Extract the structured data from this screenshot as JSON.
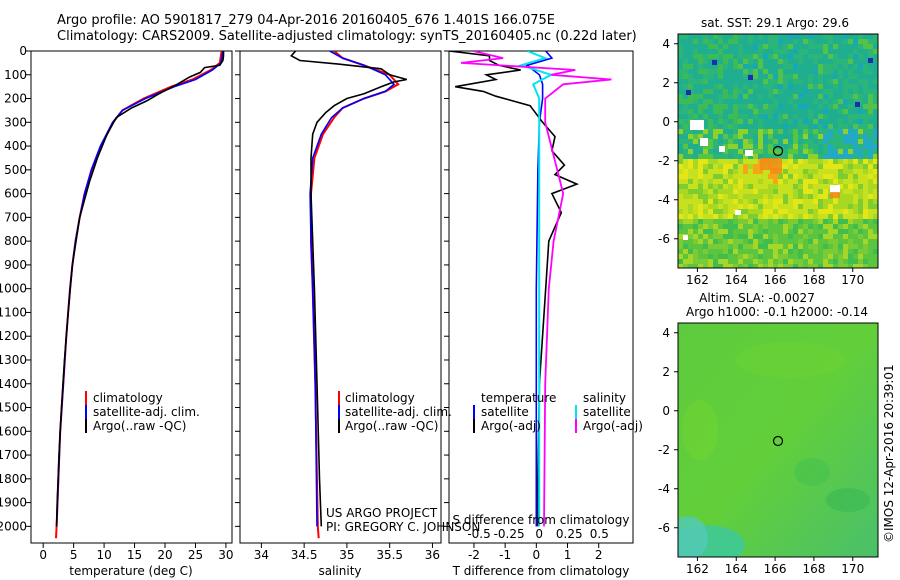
{
  "header": {
    "line1": "Argo profile: AO 5901817_279 04-Apr-2016 20160405_676 1.401S 166.075E",
    "line2": "Climatology: CARS2009. Satellite-adjusted climatology: synTS_20160405.nc (0.22d later)"
  },
  "sst_title": "sat. SST: 29.1 Argo: 29.6",
  "sla_title1": "Altim. SLA: -0.0027",
  "sla_title2": "Argo h1000: -0.1 h2000: -0.14",
  "credit_vertical": "©IMOS 12-Apr-2016 20:39:01",
  "project_line1": "US ARGO PROJECT",
  "project_line2": "PI: GREGORY C. JOHNSON",
  "colors": {
    "climatology": "#ff0000",
    "satellite": "#0000ff",
    "argo": "#000000",
    "diff_satellite_sal": "#00e5ee",
    "diff_argo_sal": "#ff00ff"
  },
  "chart_data": [
    {
      "type": "line",
      "id": "temperature",
      "xlabel": "temperature (deg C)",
      "ylabel": "",
      "xlim": [
        -2,
        31
      ],
      "ylim": [
        2070,
        0
      ],
      "xticks": [
        "0",
        "5",
        "10",
        "15",
        "20",
        "25",
        "30"
      ],
      "yticks": [
        "0",
        "100",
        "200",
        "300",
        "400",
        "500",
        "600",
        "700",
        "800",
        "900",
        "1000",
        "1100",
        "1200",
        "1300",
        "1400",
        "1500",
        "1600",
        "1700",
        "1800",
        "1900",
        "2000"
      ],
      "legend": [
        "climatology",
        "satellite-adj. clim.",
        "Argo(..raw -QC)"
      ],
      "series": [
        {
          "name": "climatology",
          "depth": [
            0,
            50,
            80,
            120,
            150,
            200,
            250,
            300,
            400,
            500,
            600,
            700,
            800,
            900,
            1000,
            1200,
            1400,
            1600,
            1800,
            2000,
            2050
          ],
          "values": [
            29.3,
            29.0,
            27.5,
            24.5,
            21.0,
            16.5,
            13.0,
            11.5,
            9.5,
            8.0,
            6.8,
            6.0,
            5.3,
            4.8,
            4.4,
            3.8,
            3.3,
            2.8,
            2.5,
            2.2,
            2.1
          ]
        },
        {
          "name": "satellite-adj. clim.",
          "depth": [
            0,
            50,
            80,
            120,
            150,
            200,
            250,
            300,
            400,
            500,
            600,
            700,
            800,
            900,
            1000,
            1200,
            1400,
            1600,
            1800,
            2000
          ],
          "values": [
            29.5,
            29.2,
            27.8,
            25.0,
            21.5,
            16.8,
            13.0,
            11.4,
            9.4,
            7.9,
            6.8,
            6.0,
            5.3,
            4.8,
            4.4,
            3.8,
            3.3,
            2.8,
            2.5,
            2.2
          ]
        },
        {
          "name": "Argo(..raw -QC)",
          "depth": [
            0,
            20,
            40,
            60,
            70,
            90,
            110,
            140,
            180,
            210,
            240,
            280,
            350,
            450,
            550,
            700,
            900,
            1100,
            1300,
            1500,
            1700,
            1900,
            2000
          ],
          "values": [
            29.6,
            29.6,
            29.5,
            29.0,
            26.5,
            25.8,
            24.0,
            22.0,
            19.0,
            17.0,
            14.5,
            12.0,
            10.5,
            8.9,
            7.6,
            6.0,
            4.8,
            4.1,
            3.5,
            3.0,
            2.6,
            2.3,
            2.2
          ]
        }
      ]
    },
    {
      "type": "line",
      "id": "salinity",
      "xlabel": "salinity",
      "xlim": [
        33.75,
        36.1
      ],
      "ylim": [
        2070,
        0
      ],
      "xticks": [
        "34",
        "34.5",
        "35",
        "35.5",
        "36"
      ],
      "legend": [
        "climatology",
        "satellite-adj. clim.",
        "Argo(..raw -QC)"
      ],
      "series": [
        {
          "name": "climatology",
          "depth": [
            0,
            30,
            60,
            100,
            140,
            170,
            200,
            240,
            280,
            350,
            450,
            600,
            800,
            1000,
            1400,
            2000,
            2050
          ],
          "values": [
            34.85,
            34.95,
            35.2,
            35.5,
            35.6,
            35.45,
            35.2,
            34.95,
            34.85,
            34.72,
            34.62,
            34.58,
            34.58,
            34.6,
            34.63,
            34.66,
            34.67
          ]
        },
        {
          "name": "satellite-adj. clim.",
          "depth": [
            0,
            30,
            60,
            100,
            140,
            170,
            200,
            240,
            280,
            350,
            450,
            600,
            800,
            1000,
            1400,
            2000
          ],
          "values": [
            34.8,
            34.95,
            35.2,
            35.45,
            35.55,
            35.45,
            35.2,
            34.95,
            34.82,
            34.7,
            34.6,
            34.57,
            34.58,
            34.6,
            34.63,
            34.65
          ]
        },
        {
          "name": "Argo(..raw -QC)",
          "depth": [
            0,
            20,
            40,
            55,
            75,
            100,
            120,
            130,
            150,
            180,
            200,
            230,
            260,
            300,
            350,
            450,
            600,
            800,
            1000,
            1400,
            1800,
            2000
          ],
          "values": [
            34.4,
            34.35,
            34.45,
            34.9,
            35.4,
            35.5,
            35.7,
            35.55,
            35.4,
            35.2,
            35.0,
            34.85,
            34.75,
            34.65,
            34.6,
            34.58,
            34.58,
            34.6,
            34.62,
            34.65,
            34.68,
            34.7
          ]
        }
      ]
    },
    {
      "type": "line",
      "id": "differences",
      "xlabel": "T difference from climatology",
      "xlabel_top": "S difference from climatology",
      "xlim_T": [
        -2.8,
        3.1
      ],
      "xlim_S": [
        -0.75,
        0.78
      ],
      "ylim": [
        2070,
        0
      ],
      "xticks_T": [
        "-2",
        "-1",
        "0",
        "1",
        "2"
      ],
      "xticks_S": [
        "-0.5",
        "-0.25",
        "0",
        "0.25",
        "0.5"
      ],
      "legend_temperature_title": "temperature",
      "legend_salinity_title": "salinity",
      "legend": [
        "satellite",
        "Argo(-adj)",
        "satellite",
        "Argo(-adj)"
      ],
      "series": [
        {
          "name": "T satellite",
          "depth": [
            0,
            30,
            60,
            100,
            140,
            200,
            300,
            500,
            1000,
            2000
          ],
          "values": [
            0.3,
            0.5,
            -0.3,
            0.1,
            0.2,
            0.2,
            0.1,
            0.05,
            0.0,
            0.0
          ]
        },
        {
          "name": "T Argo(-adj)",
          "depth": [
            0,
            20,
            40,
            60,
            80,
            100,
            120,
            150,
            170,
            190,
            230,
            300,
            360,
            420,
            480,
            520,
            560,
            600,
            680,
            800,
            1000,
            1400,
            1800,
            2000
          ],
          "values": [
            -2.8,
            -1.5,
            -1.5,
            -1.2,
            -0.5,
            -1.6,
            -1.3,
            -2.6,
            -1.7,
            -1.3,
            -0.2,
            0.2,
            0.6,
            0.5,
            0.9,
            0.6,
            1.3,
            0.5,
            0.8,
            0.4,
            0.3,
            0.1,
            0.05,
            0.05
          ]
        },
        {
          "name": "S satellite",
          "depth": [
            0,
            30,
            60,
            100,
            140,
            200,
            400,
            800,
            1200,
            2000
          ],
          "values": [
            -0.1,
            0.05,
            -0.15,
            0.1,
            -0.05,
            0.0,
            0.0,
            0.0,
            0.0,
            0.0
          ]
        },
        {
          "name": "S Argo(-adj)",
          "depth": [
            0,
            30,
            50,
            80,
            100,
            120,
            140,
            160,
            200,
            300,
            400,
            500,
            600,
            800,
            1000,
            1400,
            2000
          ],
          "values": [
            -0.55,
            -0.3,
            -0.65,
            0.3,
            0.1,
            0.6,
            0.2,
            0.15,
            0.05,
            0.05,
            0.1,
            0.15,
            0.2,
            0.12,
            0.08,
            0.05,
            0.04
          ]
        }
      ]
    },
    {
      "type": "heatmap",
      "id": "sst_map",
      "xticks": [
        "162",
        "164",
        "166",
        "168",
        "170"
      ],
      "yticks": [
        "4",
        "2",
        "0",
        "-2",
        "-4",
        "-6"
      ],
      "xlim": [
        161,
        171.3
      ],
      "ylim": [
        -7.5,
        4.5
      ],
      "marker": {
        "lon": 166.075,
        "lat": -1.401
      }
    },
    {
      "type": "heatmap",
      "id": "sla_map",
      "xticks": [
        "162",
        "164",
        "166",
        "168",
        "170"
      ],
      "yticks": [
        "4",
        "2",
        "0",
        "-2",
        "-4",
        "-6"
      ],
      "xlim": [
        161,
        171.3
      ],
      "ylim": [
        -7.5,
        4.5
      ],
      "marker": {
        "lon": 166.075,
        "lat": -1.401
      }
    }
  ]
}
